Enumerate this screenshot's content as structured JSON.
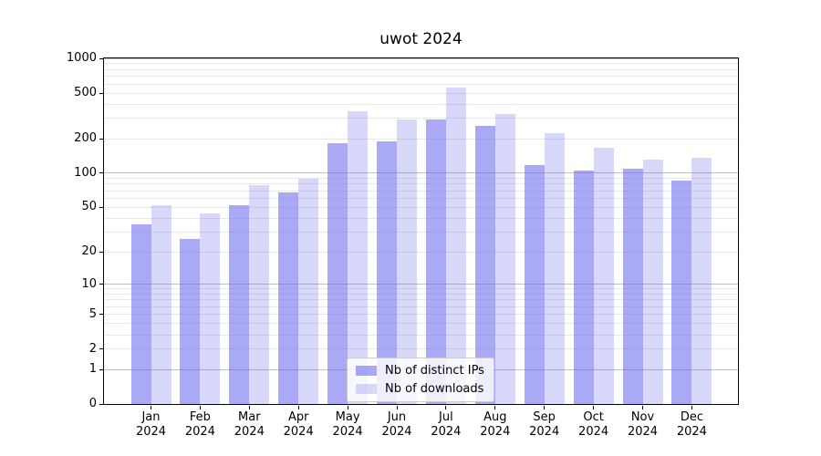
{
  "chart_data": {
    "type": "bar",
    "title": "uwot 2024",
    "x_categories": [
      "Jan",
      "Feb",
      "Mar",
      "Apr",
      "May",
      "Jun",
      "Jul",
      "Aug",
      "Sep",
      "Oct",
      "Nov",
      "Dec"
    ],
    "x_year": "2024",
    "series": [
      {
        "name": "Nb of distinct IPs",
        "values": [
          35,
          26,
          52,
          68,
          182,
          188,
          295,
          260,
          118,
          105,
          110,
          86
        ],
        "color": "rgba(99,99,238,0.55)"
      },
      {
        "name": "Nb of downloads",
        "values": [
          52,
          44,
          78,
          89,
          348,
          295,
          560,
          330,
          225,
          168,
          132,
          137
        ],
        "color": "rgba(99,99,238,0.25)"
      }
    ],
    "y_axis": {
      "scale": "log1p",
      "lim": [
        0,
        1000
      ],
      "tick_labels": [
        0,
        1,
        2,
        5,
        10,
        20,
        50,
        100,
        200,
        500,
        1000
      ],
      "major_gridlines": [
        1,
        10,
        100,
        1000
      ],
      "minor_gridlines": [
        2,
        3,
        4,
        5,
        6,
        7,
        8,
        9,
        20,
        30,
        40,
        50,
        60,
        70,
        80,
        90,
        200,
        300,
        400,
        500,
        600,
        700,
        800,
        900
      ]
    },
    "legend": {
      "position": "lower center"
    },
    "colors": {
      "bar_dark": "rgba(99,99,238,0.55)",
      "bar_light": "rgba(99,99,238,0.25)",
      "grid_major": "#c0c0c0",
      "grid_minor": "#e8e8e8",
      "spine": "#000000",
      "background": "#ffffff"
    },
    "grid": "on"
  }
}
